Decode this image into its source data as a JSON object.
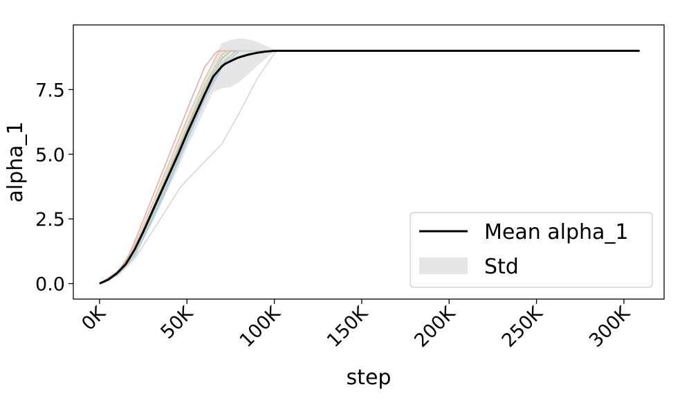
{
  "chart_data": {
    "type": "line",
    "title": "",
    "xlabel": "step",
    "ylabel": "alpha_1",
    "xlim": [
      -15000,
      323000
    ],
    "ylim": [
      -0.6,
      10.0
    ],
    "x_ticks": [
      0,
      50000,
      100000,
      150000,
      200000,
      250000,
      300000
    ],
    "x_tick_labels": [
      "0K",
      "50K",
      "100K",
      "150K",
      "200K",
      "250K",
      "300K"
    ],
    "y_ticks": [
      0.0,
      2.5,
      5.0,
      7.5
    ],
    "y_tick_labels": [
      "0.0",
      "2.5",
      "5.0",
      "7.5"
    ],
    "grid": false,
    "legend": {
      "placement": "lower-right",
      "entries": [
        {
          "label": "Mean alpha_1",
          "kind": "line",
          "color": "#000000"
        },
        {
          "label": "Std",
          "kind": "band",
          "color": "#e6e6e6"
        }
      ]
    },
    "mean": {
      "name": "Mean alpha_1",
      "color": "#000000",
      "x": [
        0,
        5000,
        10000,
        15000,
        20000,
        25000,
        30000,
        35000,
        40000,
        45000,
        50000,
        55000,
        60000,
        65000,
        70000,
        72000,
        75000,
        78000,
        80000,
        85000,
        90000,
        95000,
        100000,
        102000,
        150000,
        200000,
        250000,
        309000
      ],
      "y": [
        0.0,
        0.15,
        0.4,
        0.75,
        1.3,
        2.0,
        2.75,
        3.5,
        4.25,
        5.0,
        5.8,
        6.55,
        7.3,
        8.0,
        8.4,
        8.5,
        8.6,
        8.7,
        8.75,
        8.85,
        8.92,
        8.97,
        9.0,
        9.0,
        9.0,
        9.0,
        9.0,
        9.0
      ]
    },
    "std_band": {
      "name": "Std",
      "color": "#e6e6e6",
      "x": [
        0,
        5000,
        10000,
        15000,
        20000,
        25000,
        30000,
        35000,
        40000,
        45000,
        50000,
        55000,
        60000,
        65000,
        70000,
        75000,
        80000,
        85000,
        90000,
        95000,
        100000,
        102000,
        309000
      ],
      "upper": [
        0.0,
        0.2,
        0.5,
        0.9,
        1.55,
        2.3,
        3.1,
        3.95,
        4.75,
        5.55,
        6.35,
        7.15,
        7.9,
        8.6,
        9.3,
        9.42,
        9.48,
        9.45,
        9.35,
        9.2,
        9.05,
        9.0,
        9.0
      ],
      "lower": [
        0.0,
        0.1,
        0.3,
        0.6,
        1.05,
        1.7,
        2.4,
        3.05,
        3.75,
        4.45,
        5.25,
        5.95,
        6.7,
        7.4,
        7.55,
        7.6,
        7.8,
        8.1,
        8.4,
        8.7,
        8.95,
        9.0,
        9.0
      ]
    },
    "runs": [
      {
        "color": "#e8a0a0",
        "x": [
          0,
          10000,
          15000,
          20000,
          30000,
          40000,
          50000,
          60000,
          66000,
          68000,
          309000
        ],
        "y": [
          0.0,
          0.45,
          0.85,
          1.6,
          3.3,
          5.0,
          6.7,
          8.35,
          8.9,
          9.0,
          9.0
        ]
      },
      {
        "color": "#e8c09a",
        "x": [
          0,
          10000,
          20000,
          30000,
          40000,
          50000,
          60000,
          68000,
          70000,
          309000
        ],
        "y": [
          0.0,
          0.4,
          1.45,
          3.05,
          4.7,
          6.35,
          7.9,
          8.95,
          9.0,
          9.0
        ]
      },
      {
        "color": "#b8d4a0",
        "x": [
          0,
          10000,
          20000,
          30000,
          40000,
          50000,
          60000,
          70000,
          73000,
          309000
        ],
        "y": [
          0.0,
          0.38,
          1.35,
          2.85,
          4.45,
          6.05,
          7.65,
          8.85,
          9.0,
          9.0
        ]
      },
      {
        "color": "#c8b89a",
        "x": [
          0,
          10000,
          20000,
          30000,
          40000,
          50000,
          60000,
          70000,
          75000,
          309000
        ],
        "y": [
          0.0,
          0.38,
          1.3,
          2.8,
          4.35,
          5.95,
          7.5,
          8.7,
          9.0,
          9.0
        ]
      },
      {
        "color": "#a8c8e0",
        "x": [
          0,
          10000,
          20000,
          30000,
          40000,
          50000,
          60000,
          70000,
          78000,
          309000
        ],
        "y": [
          0.0,
          0.33,
          1.1,
          2.5,
          4.0,
          5.6,
          7.2,
          8.45,
          9.0,
          9.0
        ]
      },
      {
        "color": "#b0c4dc",
        "x": [
          0,
          10000,
          20000,
          30000,
          40000,
          50000,
          60000,
          70000,
          80000,
          309000
        ],
        "y": [
          0.0,
          0.32,
          1.05,
          2.4,
          3.9,
          5.5,
          7.1,
          8.35,
          9.0,
          9.0
        ]
      },
      {
        "color": "#c8d8c0",
        "x": [
          0,
          10000,
          20000,
          30000,
          40000,
          50000,
          60000,
          70000,
          79000,
          309000
        ],
        "y": [
          0.0,
          0.34,
          1.15,
          2.6,
          4.1,
          5.7,
          7.3,
          8.55,
          9.0,
          9.0
        ]
      },
      {
        "color": "#d0d0d8",
        "x": [
          0,
          10000,
          20000,
          30000,
          40000,
          46000,
          50000,
          60000,
          70000,
          80000,
          90000,
          100000,
          102000,
          309000
        ],
        "y": [
          0.0,
          0.3,
          0.95,
          2.0,
          3.05,
          3.7,
          4.0,
          4.7,
          5.4,
          6.6,
          7.9,
          8.9,
          9.0,
          9.0
        ]
      }
    ]
  }
}
